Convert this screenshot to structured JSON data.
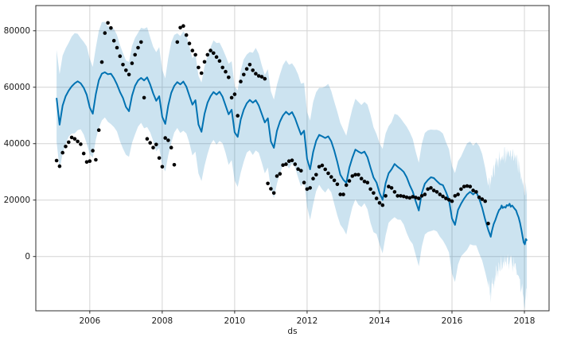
{
  "figure": {
    "xlabel": "ds",
    "background": "#ffffff",
    "axes": {
      "x_range": [
        2004.51,
        2018.68
      ],
      "y_range": [
        -19240,
        88940
      ],
      "x_ticks": [
        2006,
        2008,
        2010,
        2012,
        2014,
        2016,
        2018
      ],
      "y_ticks": [
        0,
        20000,
        40000,
        60000,
        80000
      ],
      "grid": true,
      "grid_color": "#d4d4d4",
      "spine_color": "#2e2e2e",
      "tick_label_color": "#1a1a1a"
    }
  },
  "chart_data": {
    "type": "line",
    "title": "",
    "xlabel": "ds",
    "ylabel": "",
    "x_unit": "decimal_year",
    "xlim": [
      2004.51,
      2018.68
    ],
    "ylim": [
      -19240,
      88940
    ],
    "grid": true,
    "legend": "none",
    "series": [
      {
        "name": "observations",
        "style": "scatter",
        "color": "#000000",
        "marker_radius": 2.3,
        "start": 2005.0833,
        "step": 0.0833333,
        "values": [
          34000,
          32000,
          36800,
          39000,
          40500,
          42200,
          41700,
          40800,
          39800,
          36500,
          33500,
          33800,
          37500,
          34300,
          44800,
          68900,
          79200,
          82800,
          81000,
          76500,
          74000,
          71000,
          68000,
          66000,
          64500,
          68500,
          71500,
          74000,
          76000,
          56300,
          41700,
          40300,
          38600,
          39700,
          34900,
          31800,
          42000,
          41200,
          38600,
          32500,
          76000,
          81100,
          81700,
          78500,
          75500,
          73000,
          71500,
          67000,
          65000,
          69000,
          71500,
          73000,
          72100,
          70700,
          69300,
          67000,
          65500,
          63500,
          56300,
          57500,
          49900,
          62000,
          64500,
          66500,
          68000,
          66000,
          64800,
          64000,
          63700,
          63000,
          25900,
          24000,
          22500,
          28500,
          29300,
          32400,
          32700,
          33800,
          34100,
          32700,
          31000,
          30400,
          26200,
          23900,
          24300,
          27600,
          29000,
          31800,
          32300,
          30900,
          29500,
          28200,
          27000,
          25600,
          22000,
          22000,
          25300,
          26800,
          28500,
          29000,
          29000,
          27600,
          26600,
          26200,
          23900,
          22500,
          20600,
          19000,
          18200,
          21500,
          24800,
          24300,
          22900,
          21500,
          21500,
          21300,
          21000,
          20800,
          21200,
          20900,
          20600,
          21500,
          22000,
          23900,
          24300,
          23400,
          22900,
          22000,
          21300,
          20600,
          20100,
          19600,
          21500,
          22000,
          23900,
          24800,
          25000,
          24800,
          23400,
          22900,
          21000,
          20300,
          19600,
          11700
        ]
      },
      {
        "name": "yhat",
        "style": "line",
        "color": "#0072B2",
        "line_width": 2,
        "start": 2005.0833,
        "step": 0.0833333,
        "values": [
          56200,
          46700,
          53500,
          56800,
          58800,
          60300,
          61400,
          62100,
          61400,
          59800,
          57300,
          52800,
          50600,
          57500,
          62500,
          64800,
          65300,
          64600,
          64800,
          63200,
          61000,
          58300,
          56200,
          53000,
          51500,
          57000,
          60500,
          62400,
          63300,
          62400,
          63500,
          61000,
          57800,
          55200,
          56800,
          49500,
          47000,
          53500,
          58000,
          60500,
          61800,
          61000,
          62000,
          60200,
          57000,
          53800,
          55400,
          46800,
          44200,
          50500,
          54500,
          56800,
          58300,
          57400,
          58400,
          56600,
          53500,
          50400,
          52000,
          44000,
          42400,
          48500,
          52000,
          54300,
          55500,
          54500,
          55400,
          53500,
          50500,
          47500,
          49000,
          40800,
          38500,
          44500,
          47800,
          50000,
          51300,
          50300,
          51200,
          49000,
          46000,
          43200,
          44600,
          34600,
          30900,
          37000,
          41000,
          43100,
          42600,
          42000,
          42600,
          40800,
          37500,
          33500,
          29000,
          27200,
          26100,
          31500,
          35000,
          37900,
          37200,
          36600,
          37200,
          35200,
          31500,
          28000,
          26200,
          22500,
          20100,
          26000,
          29500,
          30900,
          32800,
          31800,
          31000,
          30000,
          28100,
          25300,
          23000,
          19500,
          16300,
          22500,
          25800,
          27100,
          28100,
          27800,
          26700,
          25700,
          25300,
          22900,
          20100,
          13500,
          11200,
          16500,
          18700,
          20500,
          22000,
          22900,
          22000,
          22900,
          20600,
          17300,
          13100
        ],
        "future_points": [
          [
            2017.0,
            9500
          ],
          [
            2017.07,
            7000
          ],
          [
            2017.1,
            9000
          ],
          [
            2017.15,
            11500
          ],
          [
            2017.2,
            13000
          ],
          [
            2017.25,
            14900
          ],
          [
            2017.3,
            16500
          ],
          [
            2017.34,
            17000
          ],
          [
            2017.37,
            18100
          ],
          [
            2017.4,
            17200
          ],
          [
            2017.44,
            17600
          ],
          [
            2017.48,
            17300
          ],
          [
            2017.51,
            18200
          ],
          [
            2017.55,
            18000
          ],
          [
            2017.59,
            18700
          ],
          [
            2017.62,
            17600
          ],
          [
            2017.66,
            18100
          ],
          [
            2017.7,
            17400
          ],
          [
            2017.73,
            16900
          ],
          [
            2017.77,
            16300
          ],
          [
            2017.8,
            15200
          ],
          [
            2017.84,
            13800
          ],
          [
            2017.88,
            11800
          ],
          [
            2017.92,
            9200
          ],
          [
            2017.95,
            7000
          ],
          [
            2017.98,
            5000
          ],
          [
            2018.01,
            4300
          ],
          [
            2018.04,
            6200
          ],
          [
            2018.07,
            5600
          ]
        ]
      },
      {
        "name": "uncertainty-interval",
        "style": "band",
        "color": "rgba(0,114,178,0.2)",
        "halfwidth_upper": [
          17000,
          18000
        ],
        "halfwidth_lower": [
          16500,
          19500
        ],
        "future_halfwidth_upper": 18500,
        "future_halfwidth_lower": 20000,
        "future_jitter_upper": 3000,
        "future_jitter_lower": 3500,
        "future_sample_step": 0.012
      }
    ]
  }
}
